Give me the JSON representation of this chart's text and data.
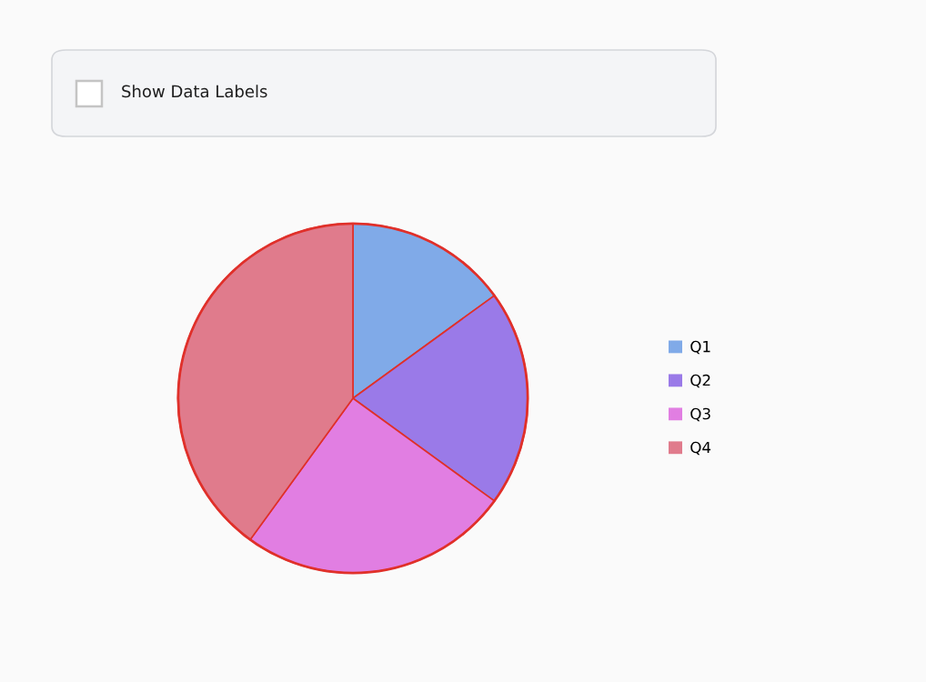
{
  "chart_data": {
    "type": "pie",
    "categories": [
      "Q1",
      "Q2",
      "Q3",
      "Q4"
    ],
    "values": [
      15,
      20,
      25,
      40
    ],
    "colors": [
      "#80aae8",
      "#9a7ae8",
      "#e17ee2",
      "#e07b8c"
    ],
    "legend": "right",
    "annotations": [
      "Show Data Labels"
    ]
  }
}
